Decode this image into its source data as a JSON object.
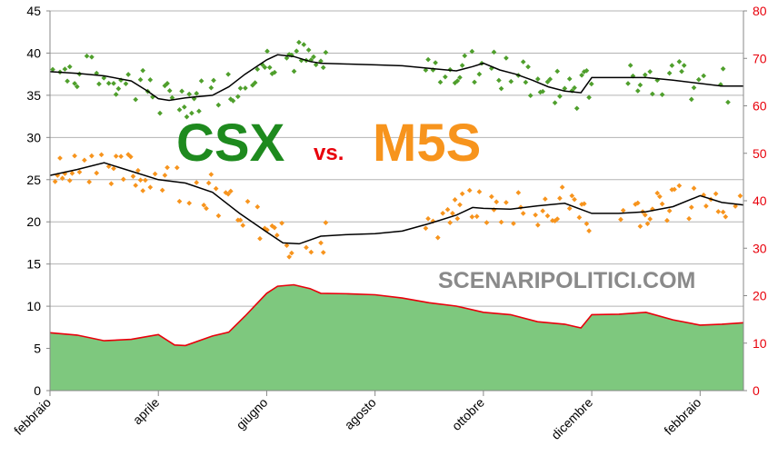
{
  "chart_data": {
    "type": "line",
    "title": "",
    "annotations": [
      "CSX",
      "vs.",
      "M5S"
    ],
    "watermark": "SCENARIPOLITICI.COM",
    "colors": {
      "csx": "#4f9f2c",
      "m5s": "#f7941d",
      "trend": "#000000",
      "gap_fill": "#7ec87e",
      "gap_line": "#e8000b",
      "csx_text": "#1e8a1e",
      "m5s_text": "#f7941d",
      "vs_text": "#e8000b"
    },
    "grid": true,
    "x_tick_labels": [
      "febbraio",
      "aprile",
      "giugno",
      "agosto",
      "ottobre",
      "dicembre",
      "febbraio"
    ],
    "x_tick_months": [
      0,
      2,
      4,
      6,
      8,
      10,
      12
    ],
    "x_range_months": [
      0,
      12.8
    ],
    "y_left": {
      "range": [
        0,
        45
      ],
      "ticks": [
        0,
        5,
        10,
        15,
        20,
        25,
        30,
        35,
        40,
        45
      ]
    },
    "y_right": {
      "range": [
        0,
        80
      ],
      "ticks": [
        0,
        10,
        20,
        30,
        40,
        50,
        60,
        70,
        80
      ]
    },
    "series": [
      {
        "id": "csx_trend",
        "kind": "line",
        "axis": "left",
        "x": [
          0,
          0.5,
          1,
          1.5,
          1.8,
          2,
          2.2,
          2.5,
          3,
          3.3,
          3.6,
          4,
          4.2,
          4.5,
          4.8,
          5,
          5.5,
          6,
          6.5,
          7,
          7.5,
          7.8,
          8,
          8.3,
          8.6,
          8.9,
          9.2,
          9.5,
          9.8,
          10,
          10.5,
          11,
          11.5,
          12,
          12.4,
          12.8
        ],
        "y": [
          37.8,
          37.6,
          37.3,
          36.7,
          35.5,
          34.6,
          34.4,
          34.7,
          35,
          36,
          37.5,
          39.2,
          39.8,
          39.6,
          39,
          38.8,
          38.7,
          38.6,
          38.5,
          38.2,
          37.9,
          38.4,
          38.8,
          38,
          37.5,
          36.8,
          36,
          35.5,
          35.3,
          37.1,
          37.1,
          37.1,
          36.8,
          36.4,
          36.1,
          36.1
        ]
      },
      {
        "id": "m5s_trend",
        "kind": "line",
        "axis": "left",
        "x": [
          0,
          0.5,
          1,
          1.5,
          2,
          2.5,
          3,
          3.5,
          4,
          4.3,
          4.6,
          5,
          5.5,
          6,
          6.5,
          7,
          7.5,
          7.8,
          8,
          8.5,
          9,
          9.5,
          10,
          10.5,
          11,
          11.5,
          12,
          12.4,
          12.8
        ],
        "y": [
          25.5,
          26.2,
          27,
          26,
          25,
          24.6,
          23.5,
          21,
          18.8,
          17.5,
          17.4,
          18.3,
          18.5,
          18.6,
          18.9,
          19.8,
          20.8,
          21.7,
          21.6,
          21.5,
          21.9,
          22.2,
          21,
          21,
          21.2,
          21.8,
          23.1,
          22.3,
          22
        ]
      },
      {
        "id": "gap",
        "kind": "area",
        "axis": "right",
        "x": [
          0,
          0.5,
          1,
          1.5,
          2,
          2.3,
          2.5,
          3,
          3.3,
          3.6,
          4,
          4.2,
          4.5,
          4.8,
          5,
          5.5,
          6,
          6.5,
          7,
          7.5,
          8,
          8.5,
          9,
          9.5,
          9.8,
          10,
          10.5,
          11,
          11.5,
          12,
          12.4,
          12.8
        ],
        "y": [
          12.2,
          11.7,
          10.5,
          10.8,
          11.8,
          9.6,
          9.5,
          11.5,
          12.3,
          15.7,
          20.5,
          22,
          22.3,
          21.5,
          20.5,
          20.4,
          20.2,
          19.5,
          18.5,
          17.8,
          16.5,
          16,
          14.5,
          14,
          13.2,
          16,
          16.1,
          16.5,
          14.9,
          13.8,
          14,
          14.3
        ]
      }
    ]
  }
}
